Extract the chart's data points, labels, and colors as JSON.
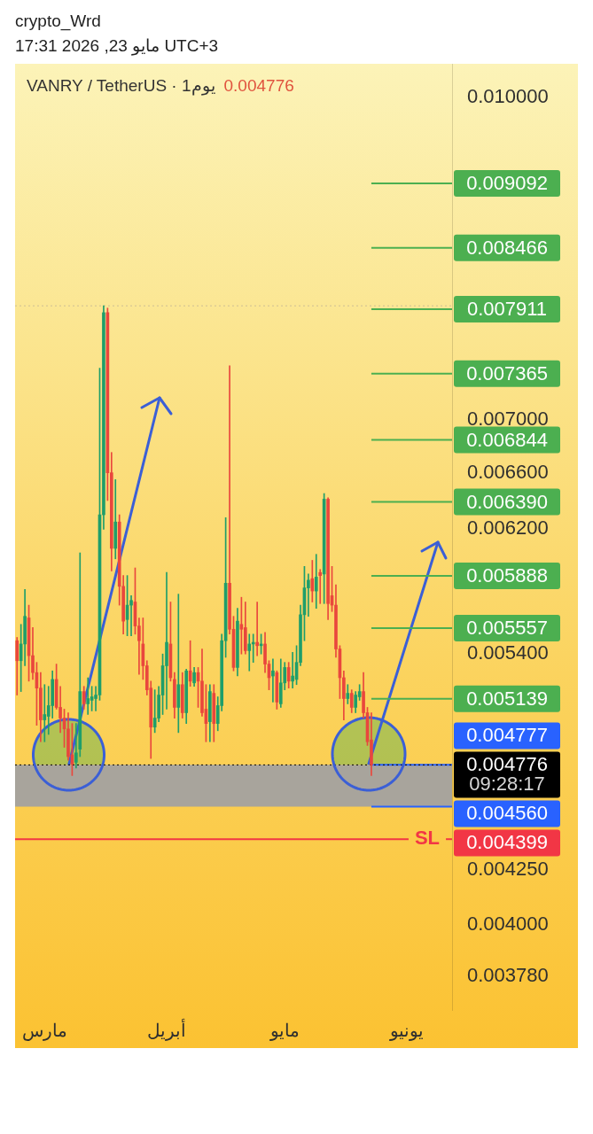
{
  "chart_data": {
    "type": "candlestick",
    "title": "VANRY / TetherUS · 1يوم",
    "subtitle": "0.004776",
    "annotations": [
      "crypto_Wrd",
      "UTC+3 مايو 23, 2026 17:31",
      "09:28:17",
      "SL"
    ],
    "categories": [
      null,
      null,
      null,
      null,
      null,
      null,
      null,
      "مارس",
      null,
      null,
      null,
      null,
      null,
      null,
      null,
      null,
      null,
      null,
      null,
      null,
      null,
      null,
      null,
      null,
      null,
      null,
      null,
      null,
      null,
      null,
      null,
      null,
      null,
      null,
      null,
      null,
      null,
      null,
      "أبريل",
      null,
      null,
      null,
      null,
      null,
      null,
      null,
      null,
      null,
      null,
      null,
      null,
      null,
      null,
      null,
      null,
      null,
      null,
      null,
      null,
      null,
      null,
      null,
      null,
      null,
      null,
      null,
      null,
      null,
      "مايو",
      null,
      null,
      null,
      null,
      null,
      null,
      null,
      null,
      null,
      null,
      null,
      null,
      null,
      null,
      null,
      null,
      null,
      null,
      null,
      null,
      null,
      null,
      null,
      null,
      null,
      null,
      null,
      null,
      null,
      null,
      "يونيو",
      null,
      null,
      null,
      null,
      null,
      null,
      null,
      null,
      null,
      null,
      null
    ],
    "ohlc": [
      [
        0.00548,
        0.0055,
        0.00516,
        0.00536
      ],
      [
        0.00536,
        0.00558,
        0.00518,
        0.00546
      ],
      [
        0.00546,
        0.0058,
        0.00533,
        0.00563
      ],
      [
        0.00562,
        0.0057,
        0.00524,
        0.00539
      ],
      [
        0.00539,
        0.00556,
        0.00525,
        0.00529
      ],
      [
        0.00529,
        0.00535,
        0.00499,
        0.0052
      ],
      [
        0.0052,
        0.00529,
        0.0049,
        0.00502
      ],
      [
        0.00502,
        0.00522,
        0.0049,
        0.00505
      ],
      [
        0.00504,
        0.00521,
        0.00494,
        0.0051
      ],
      [
        0.0051,
        0.0053,
        0.00503,
        0.00525
      ],
      [
        0.00525,
        0.00534,
        0.00508,
        0.00509
      ],
      [
        0.00509,
        0.00521,
        0.00495,
        0.00503
      ],
      [
        0.00503,
        0.00508,
        0.00487,
        0.00497
      ],
      [
        0.00497,
        0.00506,
        0.0048,
        0.00482
      ],
      [
        0.00483,
        0.005,
        0.00472,
        0.00478
      ],
      [
        0.00479,
        0.005,
        0.00476,
        0.00484
      ],
      [
        0.00486,
        0.00604,
        0.00482,
        0.00518
      ],
      [
        0.00518,
        0.00521,
        0.00508,
        0.00511
      ],
      [
        0.00511,
        0.00526,
        0.00505,
        0.00514
      ],
      [
        0.00513,
        0.00521,
        0.00507,
        0.00515
      ],
      [
        0.00514,
        0.00521,
        0.00507,
        0.00516
      ],
      [
        0.00516,
        0.00741,
        0.00513,
        0.0063
      ],
      [
        0.0063,
        0.00794,
        0.0062,
        0.00788
      ],
      [
        0.00788,
        0.00792,
        0.0064,
        0.0066
      ],
      [
        0.0066,
        0.00675,
        0.00592,
        0.00607
      ],
      [
        0.00607,
        0.00655,
        0.006,
        0.00625
      ],
      [
        0.00625,
        0.0063,
        0.0057,
        0.00582
      ],
      [
        0.00582,
        0.00589,
        0.00552,
        0.0056
      ],
      [
        0.00561,
        0.00589,
        0.00551,
        0.0057
      ],
      [
        0.0057,
        0.00576,
        0.00551,
        0.00573
      ],
      [
        0.00572,
        0.00594,
        0.00552,
        0.00557
      ],
      [
        0.00557,
        0.00562,
        0.00528,
        0.00548
      ],
      [
        0.00546,
        0.00562,
        0.00525,
        0.00533
      ],
      [
        0.00533,
        0.00536,
        0.00516,
        0.00519
      ],
      [
        0.0052,
        0.00524,
        0.00481,
        0.00498
      ],
      [
        0.00498,
        0.00519,
        0.00495,
        0.00503
      ],
      [
        0.00503,
        0.00521,
        0.00501,
        0.00516
      ],
      [
        0.00516,
        0.0054,
        0.00505,
        0.00533
      ],
      [
        0.00533,
        0.00591,
        0.00508,
        0.00547
      ],
      [
        0.00546,
        0.00572,
        0.00524,
        0.00526
      ],
      [
        0.00525,
        0.00529,
        0.00503,
        0.00509
      ],
      [
        0.00509,
        0.00577,
        0.00495,
        0.00522
      ],
      [
        0.00522,
        0.00529,
        0.00503,
        0.00506
      ],
      [
        0.00506,
        0.00531,
        0.005,
        0.0053
      ],
      [
        0.0053,
        0.00548,
        0.00521,
        0.00524
      ],
      [
        0.00523,
        0.00532,
        0.00521,
        0.00529
      ],
      [
        0.00529,
        0.00532,
        0.00509,
        0.00524
      ],
      [
        0.00524,
        0.00543,
        0.00504,
        0.00506
      ],
      [
        0.00508,
        0.00522,
        0.0049,
        0.005
      ],
      [
        0.00501,
        0.00522,
        0.0049,
        0.00518
      ],
      [
        0.00517,
        0.00522,
        0.0049,
        0.005
      ],
      [
        0.005,
        0.00515,
        0.00496,
        0.0051
      ],
      [
        0.0051,
        0.00552,
        0.00507,
        0.00548
      ],
      [
        0.00548,
        0.00628,
        0.00538,
        0.00584
      ],
      [
        0.00584,
        0.00743,
        0.00552,
        0.00555
      ],
      [
        0.00555,
        0.00563,
        0.0053,
        0.00532
      ],
      [
        0.00532,
        0.00568,
        0.00527,
        0.0056
      ],
      [
        0.00558,
        0.00575,
        0.0054,
        0.00555
      ],
      [
        0.00556,
        0.00572,
        0.0054,
        0.00542
      ],
      [
        0.00542,
        0.00552,
        0.0053,
        0.00546
      ],
      [
        0.00546,
        0.00552,
        0.00535,
        0.00547
      ],
      [
        0.00547,
        0.00572,
        0.00539,
        0.00545
      ],
      [
        0.00545,
        0.00552,
        0.0054,
        0.00546
      ],
      [
        0.00546,
        0.00553,
        0.00529,
        0.00534
      ],
      [
        0.00534,
        0.00536,
        0.00519,
        0.00526
      ],
      [
        0.00527,
        0.00537,
        0.00512,
        0.0053
      ],
      [
        0.00529,
        0.0053,
        0.00508,
        0.00512
      ],
      [
        0.00511,
        0.00537,
        0.00509,
        0.00523
      ],
      [
        0.00523,
        0.00535,
        0.00519,
        0.00532
      ],
      [
        0.00532,
        0.00535,
        0.0052,
        0.00524
      ],
      [
        0.00524,
        0.00541,
        0.0052,
        0.00527
      ],
      [
        0.00525,
        0.00545,
        0.00522,
        0.00535
      ],
      [
        0.00535,
        0.0057,
        0.00533,
        0.00564
      ],
      [
        0.00564,
        0.00595,
        0.00548,
        0.00581
      ],
      [
        0.00581,
        0.0059,
        0.00563,
        0.00586
      ],
      [
        0.00587,
        0.00599,
        0.00572,
        0.00579
      ],
      [
        0.00579,
        0.00603,
        0.00568,
        0.00588
      ],
      [
        0.00591,
        0.00593,
        0.00571,
        0.00589
      ],
      [
        0.0059,
        0.00645,
        0.00571,
        0.00641
      ],
      [
        0.00641,
        0.00642,
        0.00561,
        0.00571
      ],
      [
        0.00576,
        0.00595,
        0.00566,
        0.0057
      ],
      [
        0.0057,
        0.00583,
        0.00538,
        0.00543
      ],
      [
        0.00543,
        0.00545,
        0.00514,
        0.00526
      ],
      [
        0.00526,
        0.0053,
        0.00502,
        0.00514
      ],
      [
        0.00514,
        0.00522,
        0.00511,
        0.00517
      ],
      [
        0.00517,
        0.00519,
        0.00506,
        0.00509
      ],
      [
        0.00509,
        0.00518,
        0.00506,
        0.00516
      ],
      [
        0.00515,
        0.00522,
        0.00513,
        0.00518
      ],
      [
        0.00518,
        0.00529,
        0.00503,
        0.00506
      ],
      [
        0.00506,
        0.00509,
        0.00488,
        0.0049
      ],
      [
        0.00491,
        0.00506,
        0.00472,
        0.004776
      ],
      null,
      null,
      null,
      null,
      null,
      null,
      null,
      null,
      null,
      null,
      null,
      null,
      null,
      null,
      null,
      null,
      null,
      null,
      null,
      null
    ],
    "colors": [
      "#e9473d",
      "#1f9e6b",
      "#1f9e6b",
      "#e9473d",
      "#e9473d",
      "#e9473d",
      "#e9473d",
      "#1f9e6b",
      "#1f9e6b",
      "#1f9e6b",
      "#e9473d",
      "#e9473d",
      "#e9473d",
      "#e9473d",
      "#e9473d",
      "#1f9e6b",
      "#1f9e6b",
      "#e9473d",
      "#1f9e6b",
      "#1f9e6b",
      "#1f9e6b",
      "#1f9e6b",
      "#1f9e6b",
      "#e9473d",
      "#e9473d",
      "#1f9e6b",
      "#e9473d",
      "#e9473d",
      "#1f9e6b",
      "#1f9e6b",
      "#e9473d",
      "#e9473d",
      "#e9473d",
      "#e9473d",
      "#e9473d",
      "#1f9e6b",
      "#1f9e6b",
      "#1f9e6b",
      "#1f9e6b",
      "#e9473d",
      "#e9473d",
      "#1f9e6b",
      "#e9473d",
      "#1f9e6b",
      "#e9473d",
      "#1f9e6b",
      "#e9473d",
      "#e9473d",
      "#e9473d",
      "#1f9e6b",
      "#e9473d",
      "#1f9e6b",
      "#1f9e6b",
      "#1f9e6b",
      "#e9473d",
      "#e9473d",
      "#1f9e6b",
      "#e9473d",
      "#e9473d",
      "#1f9e6b",
      "#1f9e6b",
      "#e9473d",
      "#1f9e6b",
      "#e9473d",
      "#e9473d",
      "#1f9e6b",
      "#e9473d",
      "#1f9e6b",
      "#1f9e6b",
      "#e9473d",
      "#1f9e6b",
      "#1f9e6b",
      "#1f9e6b",
      "#1f9e6b",
      "#1f9e6b",
      "#e9473d",
      "#1f9e6b",
      "#e9473d",
      "#1f9e6b",
      "#e9473d",
      "#e9473d",
      "#e9473d",
      "#e9473d",
      "#e9473d",
      "#1f9e6b",
      "#e9473d",
      "#1f9e6b",
      "#1f9e6b",
      "#e9473d",
      "#e9473d",
      "#e9473d",
      null,
      null,
      null,
      null,
      null,
      null,
      null,
      null,
      null,
      null,
      null,
      null,
      null,
      null,
      null,
      null,
      null,
      null,
      null,
      null
    ],
    "ylim": [
      0.003641,
      0.01038
    ],
    "log": true,
    "yticks": [
      {
        "value": 0.01,
        "label": "0.010000"
      },
      {
        "value": 0.007,
        "label": "0.007000"
      },
      {
        "value": 0.0066,
        "label": "0.006600"
      },
      {
        "value": 0.0062,
        "label": "0.006200"
      },
      {
        "value": 0.0054,
        "label": "0.005400"
      },
      {
        "value": 0.00425,
        "label": "0.004250"
      },
      {
        "value": 0.004,
        "label": "0.004000"
      },
      {
        "value": 0.00378,
        "label": "0.003780"
      }
    ],
    "bands": [
      {
        "axis": "y",
        "from": 0.00456,
        "to": 0.004777,
        "color": "#a8a49c"
      }
    ],
    "ref_lines": [
      {
        "axis": "y",
        "value": 0.00794,
        "color": "#cdbf95",
        "line_style": "dotted"
      },
      {
        "axis": "y",
        "value": 0.009092,
        "label": "0.009092",
        "color": "#4caf50"
      },
      {
        "axis": "y",
        "value": 0.008466,
        "label": "0.008466",
        "color": "#4caf50"
      },
      {
        "axis": "y",
        "value": 0.007911,
        "label": "0.007911",
        "color": "#4caf50"
      },
      {
        "axis": "y",
        "value": 0.007365,
        "label": "0.007365",
        "color": "#4caf50"
      },
      {
        "axis": "y",
        "value": 0.006844,
        "label": "0.006844",
        "color": "#4caf50"
      },
      {
        "axis": "y",
        "value": 0.00639,
        "label": "0.006390",
        "color": "#4caf50"
      },
      {
        "axis": "y",
        "value": 0.005888,
        "label": "0.005888",
        "color": "#4caf50"
      },
      {
        "axis": "y",
        "value": 0.005557,
        "label": "0.005557",
        "color": "#4caf50"
      },
      {
        "axis": "y",
        "value": 0.005139,
        "label": "0.005139",
        "color": "#4caf50"
      },
      {
        "axis": "y",
        "value": 0.004777,
        "label": "0.004777",
        "color": "#2962ff"
      },
      {
        "axis": "y",
        "value": 0.004776,
        "label": "0.004776",
        "color": "#000000",
        "line_style": "dotted"
      },
      {
        "axis": "y",
        "value": 0.00456,
        "label": "0.004560",
        "color": "#2962ff"
      },
      {
        "axis": "y",
        "value": 0.004399,
        "label": "0.004399",
        "color": "#f23645"
      }
    ]
  }
}
